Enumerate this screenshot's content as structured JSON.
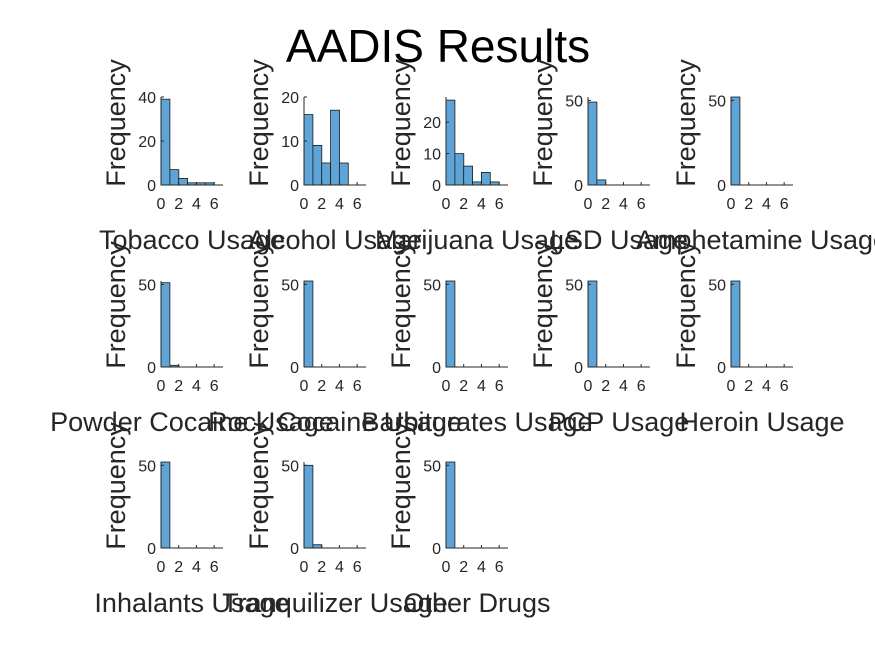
{
  "chart_data": {
    "title": "AADIS Results",
    "type": "bar",
    "bin_width": 1,
    "bin_start": 0,
    "colors": {
      "bar_fill": "#5fa4d6",
      "bar_stroke": "#1b1b1b",
      "axis": "#262626",
      "text": "#262626",
      "title": "#000000"
    },
    "panels": [
      {
        "xlabel": "Tobacco Usage",
        "ylabel": "Frequency",
        "yticks": [
          "0",
          "20",
          "40"
        ],
        "ylim": [
          0,
          40
        ],
        "xticks": [
          "0",
          "2",
          "4",
          "6"
        ],
        "xlim": [
          0,
          7
        ],
        "values": [
          39,
          7,
          3,
          1,
          1,
          1
        ]
      },
      {
        "xlabel": "Alcohol Usage",
        "ylabel": "Frequency",
        "yticks": [
          "0",
          "10",
          "20"
        ],
        "ylim": [
          0,
          20
        ],
        "xticks": [
          "0",
          "2",
          "4",
          "6"
        ],
        "xlim": [
          0,
          7
        ],
        "values": [
          16,
          9,
          5,
          17,
          5
        ]
      },
      {
        "xlabel": "Marijuana Usage",
        "ylabel": "Frequency",
        "yticks": [
          "0",
          "10",
          "20"
        ],
        "ylim": [
          0,
          28
        ],
        "xticks": [
          "0",
          "2",
          "4",
          "6"
        ],
        "xlim": [
          0,
          7
        ],
        "values": [
          27,
          10,
          6,
          1,
          4,
          1
        ]
      },
      {
        "xlabel": "LSD Usage",
        "ylabel": "Frequency",
        "yticks": [
          "0",
          "50"
        ],
        "ylim": [
          0,
          52
        ],
        "xticks": [
          "0",
          "2",
          "4",
          "6"
        ],
        "xlim": [
          0,
          7
        ],
        "values": [
          49,
          3
        ]
      },
      {
        "xlabel": "Amphetamine Usage",
        "ylabel": "Frequency",
        "yticks": [
          "0",
          "50"
        ],
        "ylim": [
          0,
          52
        ],
        "xticks": [
          "0",
          "2",
          "4",
          "6"
        ],
        "xlim": [
          0,
          7
        ],
        "values": [
          52
        ]
      },
      {
        "xlabel": "Powder Cocaine Usage",
        "ylabel": "Frequency",
        "yticks": [
          "0",
          "50"
        ],
        "ylim": [
          0,
          52
        ],
        "xticks": [
          "0",
          "2",
          "4",
          "6"
        ],
        "xlim": [
          0,
          7
        ],
        "values": [
          51,
          1
        ]
      },
      {
        "xlabel": "Rock Cocaine Usage",
        "ylabel": "Frequency",
        "yticks": [
          "0",
          "50"
        ],
        "ylim": [
          0,
          52
        ],
        "xticks": [
          "0",
          "2",
          "4",
          "6"
        ],
        "xlim": [
          0,
          7
        ],
        "values": [
          52
        ]
      },
      {
        "xlabel": "Barbiturates Usage",
        "ylabel": "Frequency",
        "yticks": [
          "0",
          "50"
        ],
        "ylim": [
          0,
          52
        ],
        "xticks": [
          "0",
          "2",
          "4",
          "6"
        ],
        "xlim": [
          0,
          7
        ],
        "values": [
          52
        ]
      },
      {
        "xlabel": "PCP Usage",
        "ylabel": "Frequency",
        "yticks": [
          "0",
          "50"
        ],
        "ylim": [
          0,
          52
        ],
        "xticks": [
          "0",
          "2",
          "4",
          "6"
        ],
        "xlim": [
          0,
          7
        ],
        "values": [
          52
        ]
      },
      {
        "xlabel": "Heroin Usage",
        "ylabel": "Frequency",
        "yticks": [
          "0",
          "50"
        ],
        "ylim": [
          0,
          52
        ],
        "xticks": [
          "0",
          "2",
          "4",
          "6"
        ],
        "xlim": [
          0,
          7
        ],
        "values": [
          52
        ]
      },
      {
        "xlabel": "Inhalants Usage",
        "ylabel": "Frequency",
        "yticks": [
          "0",
          "50"
        ],
        "ylim": [
          0,
          52
        ],
        "xticks": [
          "0",
          "2",
          "4",
          "6"
        ],
        "xlim": [
          0,
          7
        ],
        "values": [
          52
        ]
      },
      {
        "xlabel": "Tranquilizer Usage",
        "ylabel": "Frequency",
        "yticks": [
          "0",
          "50"
        ],
        "ylim": [
          0,
          52
        ],
        "xticks": [
          "0",
          "2",
          "4",
          "6"
        ],
        "xlim": [
          0,
          7
        ],
        "values": [
          50,
          2
        ]
      },
      {
        "xlabel": "Other Drugs",
        "ylabel": "Frequency",
        "yticks": [
          "0",
          "50"
        ],
        "ylim": [
          0,
          52
        ],
        "xticks": [
          "0",
          "2",
          "4",
          "6"
        ],
        "xlim": [
          0,
          7
        ],
        "values": [
          52
        ]
      }
    ]
  }
}
